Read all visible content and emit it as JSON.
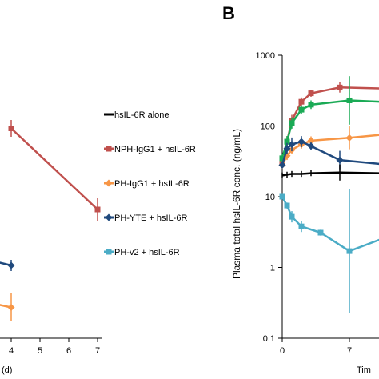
{
  "chart_data": [
    {
      "panel": "",
      "type": "line",
      "xlabel": "(d)",
      "ylabel": "",
      "xlim": [
        0,
        7
      ],
      "x_ticks": [
        "4",
        "5",
        "6",
        "7"
      ],
      "series": [
        {
          "name": "NPH-IgG1 + hsIL-6R",
          "color": "#c0504d",
          "marker": "square",
          "x": [
            4,
            7
          ],
          "y": [
            0.75,
            0.46
          ],
          "err": [
            0.03,
            0.04
          ]
        },
        {
          "name": "PH-YTE + hsIL-6R",
          "color": "#1f497d",
          "marker": "diamond",
          "x": [
            0,
            4
          ],
          "y": [
            0.36,
            0.26
          ],
          "err": [
            0,
            0.02
          ]
        },
        {
          "name": "PH-IgG1 + hsIL-6R",
          "color": "#f79646",
          "marker": "diamond",
          "x": [
            0,
            4
          ],
          "y": [
            0.2,
            0.11
          ],
          "err": [
            0,
            0.05
          ]
        }
      ]
    },
    {
      "panel": "B",
      "type": "line",
      "ylabel": "Plasma total hsIL-6R conc. (ng/mL)",
      "xlabel": "Tim",
      "y_scale": "log",
      "ylim": [
        0.1,
        1000
      ],
      "y_ticks": [
        "1000",
        "100",
        "10",
        "1",
        "0.1"
      ],
      "x_ticks": [
        "0",
        "7"
      ],
      "series": [
        {
          "name": "NPH-IgG1 + hsIL-6R",
          "color": "#c0504d",
          "marker": "square",
          "x": [
            0,
            0.5,
            1,
            2,
            3,
            6,
            10.5
          ],
          "y": [
            30,
            60,
            120,
            220,
            290,
            350,
            340
          ],
          "err": [
            1.15,
            1.2,
            1.2,
            1.15,
            1.12,
            1.18,
            1.1
          ]
        },
        {
          "name": "PH-v2 + hsIL-6R (green)",
          "color": "#1aaa55",
          "marker": "square",
          "x": [
            0,
            0.5,
            1,
            2,
            3,
            7,
            10.5
          ],
          "y": [
            35,
            60,
            110,
            170,
            200,
            230,
            220
          ],
          "err": [
            1.15,
            1.2,
            1.2,
            1.15,
            1.15,
            2.2,
            1.1
          ]
        },
        {
          "name": "PH-IgG1 + hsIL-6R",
          "color": "#f79646",
          "marker": "diamond",
          "x": [
            0,
            0.5,
            1,
            2,
            3,
            7,
            10.5
          ],
          "y": [
            28,
            38,
            46,
            55,
            62,
            68,
            75
          ],
          "err": [
            1.1,
            1.15,
            1.15,
            1.15,
            1.15,
            1.45,
            1.1
          ]
        },
        {
          "name": "PH-YTE + hsIL-6R",
          "color": "#1f497d",
          "marker": "diamond",
          "x": [
            0,
            0.5,
            1,
            2,
            3,
            6,
            10.5
          ],
          "y": [
            28,
            48,
            55,
            60,
            52,
            33,
            29
          ],
          "err": [
            1.1,
            1.2,
            1.25,
            1.2,
            1.15,
            1.35,
            1.1
          ]
        },
        {
          "name": "hsIL-6R alone",
          "color": "#000000",
          "marker": "line",
          "x": [
            0,
            0.5,
            1,
            2,
            3,
            6,
            10.5
          ],
          "y": [
            20,
            20.5,
            21,
            21,
            21.5,
            22,
            21.5
          ],
          "err": [
            1.1,
            1.1,
            1.1,
            1.1,
            1.1,
            1.3,
            1.05
          ]
        },
        {
          "name": "PH-v2 + hsIL-6R",
          "color": "#4bacc6",
          "marker": "square",
          "x": [
            0,
            0.5,
            1,
            2,
            4,
            7,
            10.5
          ],
          "y": [
            10,
            7.5,
            5.2,
            3.8,
            3.1,
            1.7,
            2.5
          ],
          "err": [
            1.05,
            1.1,
            1.2,
            1.2,
            1.1,
            7.5,
            2.2
          ]
        }
      ]
    }
  ],
  "legend": {
    "items": [
      {
        "label": "hsIL-6R alone",
        "color": "#000000",
        "marker": "line"
      },
      {
        "label": "NPH-IgG1 + hsIL-6R",
        "color": "#c0504d",
        "marker": "square"
      },
      {
        "label": "PH-IgG1 + hsIL-6R",
        "color": "#f79646",
        "marker": "diamond"
      },
      {
        "label": "PH-YTE + hsIL-6R",
        "color": "#1f497d",
        "marker": "diamond"
      },
      {
        "label": "PH-v2 + hsIL-6R",
        "color": "#4bacc6",
        "marker": "square"
      }
    ]
  }
}
